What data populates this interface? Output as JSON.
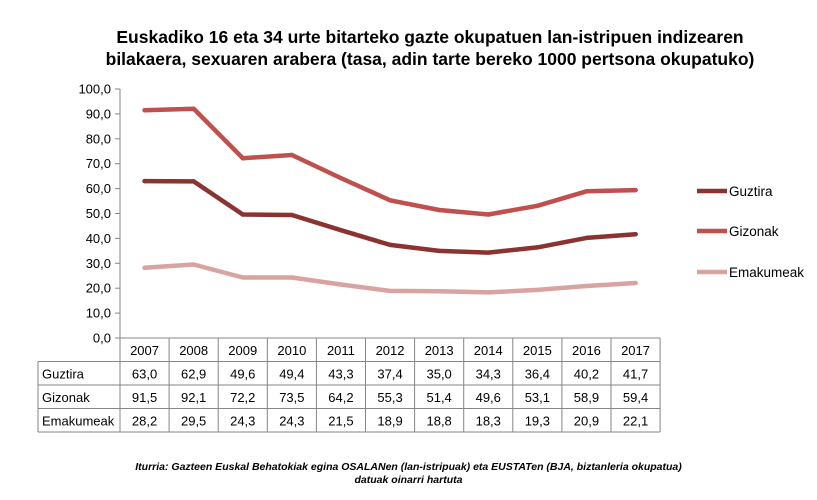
{
  "header": {
    "title_line1": "Euskadiko 16 eta 34 urte bitarteko gazte okupatuen lan-istripuen indizearen",
    "title_line2": "bilakaera, sexuaren arabera (tasa, adin tarte bereko 1000 pertsona okupatuko)"
  },
  "footer": {
    "line1": "Iturria: Gazteen Euskal Behatokiak egina OSALANen (lan-istripuak) eta EUSTATen  (BJA, biztanleria okupatua)",
    "line2": "datuak oinarri hartuta"
  },
  "chart_data": {
    "type": "line",
    "title": "Euskadiko 16 eta 34 urte bitarteko gazte okupatuen lan-istripuen indizearen bilakaera, sexuaren arabera (tasa, adin tarte bereko 1000 pertsona okupatuko)",
    "categories": [
      "2007",
      "2008",
      "2009",
      "2010",
      "2011",
      "2012",
      "2013",
      "2014",
      "2015",
      "2016",
      "2017"
    ],
    "series": [
      {
        "name": "Guztira",
        "color": "#8b3330",
        "values": [
          63.0,
          62.9,
          49.6,
          49.4,
          43.3,
          37.4,
          35.0,
          34.3,
          36.4,
          40.2,
          41.7
        ],
        "labels": [
          "63,0",
          "62,9",
          "49,6",
          "49,4",
          "43,3",
          "37,4",
          "35,0",
          "34,3",
          "36,4",
          "40,2",
          "41,7"
        ]
      },
      {
        "name": "Gizonak",
        "color": "#c0504d",
        "values": [
          91.5,
          92.1,
          72.2,
          73.5,
          64.2,
          55.3,
          51.4,
          49.6,
          53.1,
          58.9,
          59.4
        ],
        "labels": [
          "91,5",
          "92,1",
          "72,2",
          "73,5",
          "64,2",
          "55,3",
          "51,4",
          "49,6",
          "53,1",
          "58,9",
          "59,4"
        ]
      },
      {
        "name": "Emakumeak",
        "color": "#d9a3a2",
        "values": [
          28.2,
          29.5,
          24.3,
          24.3,
          21.5,
          18.9,
          18.8,
          18.3,
          19.3,
          20.9,
          22.1
        ],
        "labels": [
          "28,2",
          "29,5",
          "24,3",
          "24,3",
          "21,5",
          "18,9",
          "18,8",
          "18,3",
          "19,3",
          "20,9",
          "22,1"
        ]
      }
    ],
    "y_ticks": [
      "0,0",
      "10,0",
      "20,0",
      "30,0",
      "40,0",
      "50,0",
      "60,0",
      "70,0",
      "80,0",
      "90,0",
      "100,0"
    ],
    "ylim": [
      0,
      100
    ],
    "xlabel": "",
    "ylabel": "",
    "grid": false,
    "legend_position": "right",
    "data_table": true
  }
}
